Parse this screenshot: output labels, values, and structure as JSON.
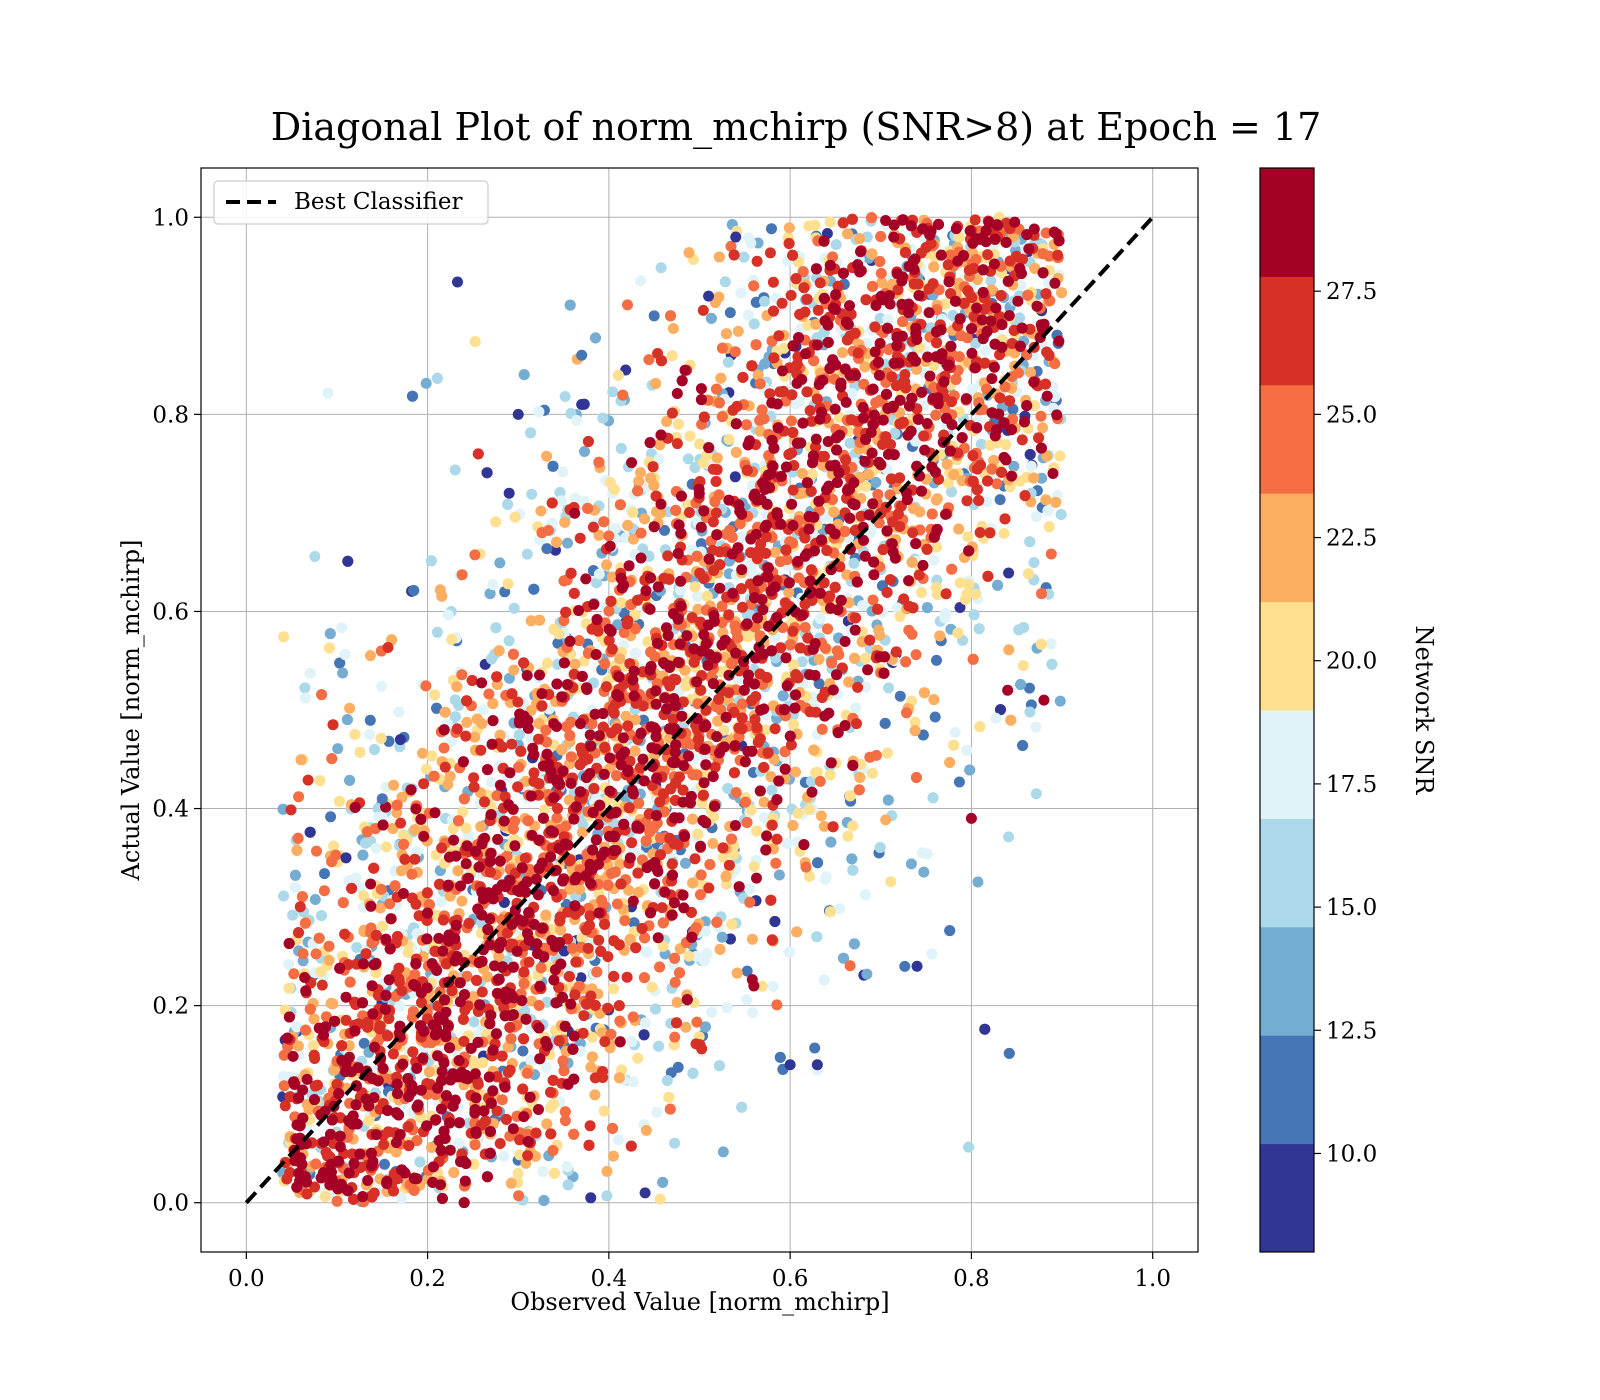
{
  "chart_data": {
    "type": "scatter",
    "title": "Diagonal Plot of norm_mchirp (SNR>8) at Epoch = 17",
    "xlabel": "Observed Value [norm_mchirp]",
    "ylabel": "Actual Value [norm_mchirp]",
    "xlim": [
      -0.05,
      1.05
    ],
    "ylim": [
      -0.05,
      1.05
    ],
    "x_ticks": [
      "0.0",
      "0.2",
      "0.4",
      "0.6",
      "0.8",
      "1.0"
    ],
    "y_ticks": [
      "0.0",
      "0.2",
      "0.4",
      "0.6",
      "0.8",
      "1.0"
    ],
    "grid": true,
    "legend_position": "top-left",
    "reference_line": {
      "name": "Best Classifier",
      "x": [
        0,
        1
      ],
      "y": [
        0,
        1
      ],
      "style": "dashed",
      "color": "#000000"
    },
    "colorbar": {
      "label": "Network SNR",
      "range": [
        8,
        30
      ],
      "tick_labels": [
        "10.0",
        "12.5",
        "15.0",
        "17.5",
        "20.0",
        "22.5",
        "25.0",
        "27.5"
      ],
      "tick_values": [
        10,
        12.5,
        15,
        17.5,
        20,
        22.5,
        25,
        27.5
      ],
      "colors": [
        "#313695",
        "#4575b4",
        "#74add1",
        "#abd9e9",
        "#e0f3f8",
        "#fee090",
        "#fdae61",
        "#f46d43",
        "#d73027",
        "#a50026"
      ]
    },
    "point_cloud": {
      "description_free": true,
      "count_visible": "dense",
      "diagonal_spread": 0.12,
      "x_range": [
        0.05,
        0.9
      ],
      "y_range": [
        0.0,
        1.0
      ]
    },
    "outlier_points": [
      {
        "x": 0.3,
        "y": 0.8,
        "snr": 9
      },
      {
        "x": 0.37,
        "y": 0.81,
        "snr": 9
      },
      {
        "x": 0.29,
        "y": 0.72,
        "snr": 9
      },
      {
        "x": 0.17,
        "y": 0.47,
        "snr": 9
      },
      {
        "x": 0.15,
        "y": 0.41,
        "snr": 11
      },
      {
        "x": 0.11,
        "y": 0.35,
        "snr": 9
      },
      {
        "x": 0.89,
        "y": 0.74,
        "snr": 29
      },
      {
        "x": 0.88,
        "y": 0.51,
        "snr": 29
      },
      {
        "x": 0.84,
        "y": 0.52,
        "snr": 29
      },
      {
        "x": 0.8,
        "y": 0.39,
        "snr": 29
      },
      {
        "x": 0.74,
        "y": 0.24,
        "snr": 9
      },
      {
        "x": 0.63,
        "y": 0.14,
        "snr": 9
      },
      {
        "x": 0.6,
        "y": 0.14,
        "snr": 9
      },
      {
        "x": 0.56,
        "y": 0.22,
        "snr": 29
      },
      {
        "x": 0.38,
        "y": 0.005,
        "snr": 9
      },
      {
        "x": 0.44,
        "y": 0.01,
        "snr": 9
      },
      {
        "x": 0.51,
        "y": 0.92,
        "snr": 9
      },
      {
        "x": 0.45,
        "y": 0.9,
        "snr": 11
      },
      {
        "x": 0.37,
        "y": 0.86,
        "snr": 11
      },
      {
        "x": 0.54,
        "y": 0.98,
        "snr": 9
      }
    ]
  }
}
